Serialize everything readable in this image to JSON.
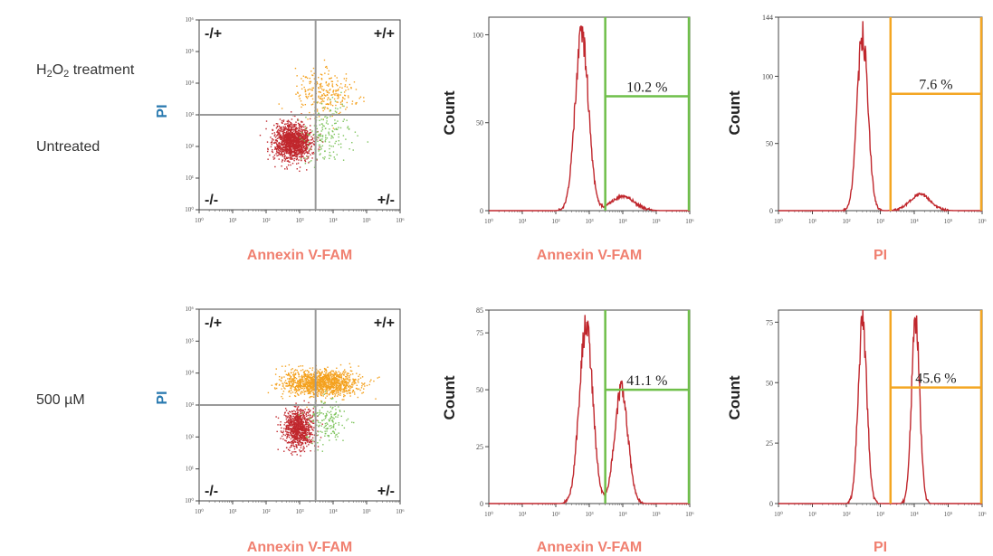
{
  "header": {
    "treatment_base": "H",
    "treatment_sub1": "2",
    "treatment_mid": "O",
    "treatment_sub2": "2",
    "treatment_rest": " treatment"
  },
  "rows": [
    {
      "label": "Untreated"
    },
    {
      "label": "500 µM"
    }
  ],
  "colors": {
    "red": "#c0272d",
    "orange": "#f4a11e",
    "green": "#7dc35b",
    "gate_green": "#6fbf4a",
    "gate_orange": "#f4a622",
    "pi_blue": "#2a7ab0",
    "annexin_salmon": "#f08070",
    "quad_line": "#999999"
  },
  "chart_data": [
    {
      "type": "scatter",
      "panel": "untreated-dotplot",
      "xlabel": "Annexin V-FAM",
      "ylabel": "PI",
      "x_scale": "log",
      "y_scale": "log",
      "xlim": [
        1,
        1000000
      ],
      "ylim": [
        1,
        1000000
      ],
      "x_ticks": [
        "10⁰",
        "10¹",
        "10²",
        "10³",
        "10⁴",
        "10⁵",
        "10⁶"
      ],
      "y_ticks": [
        "10⁰",
        "10¹",
        "10²",
        "10³",
        "10⁴",
        "10⁵",
        "10⁶"
      ],
      "quadrant_gate": {
        "x": 3000,
        "y": 1000
      },
      "quadrants": {
        "top_left": "-/+",
        "top_right": "+/+",
        "bottom_left": "-/-",
        "bottom_right": "+/-"
      },
      "populations": [
        {
          "name": "-/-",
          "color": "red",
          "center": [
            600,
            150
          ],
          "spread": [
            0.28,
            0.28
          ],
          "n": 1400
        },
        {
          "name": "+/+",
          "color": "orange",
          "center": [
            5000,
            5000
          ],
          "spread": [
            0.45,
            0.35
          ],
          "n": 260
        },
        {
          "name": "+/-",
          "color": "green",
          "center": [
            6000,
            250
          ],
          "spread": [
            0.35,
            0.4
          ],
          "n": 180
        }
      ]
    },
    {
      "type": "area",
      "panel": "untreated-annexin-histogram",
      "xlabel": "Annexin V-FAM",
      "ylabel": "Count",
      "x_scale": "log",
      "xlim": [
        1,
        1000000
      ],
      "ylim": [
        0,
        110
      ],
      "y_ticks": [
        0,
        50,
        100
      ],
      "x_ticks": [
        "10⁰",
        "10¹",
        "10²",
        "10³",
        "10⁴",
        "10⁵",
        "10⁶"
      ],
      "gate": {
        "from": 3000,
        "to": 1000000,
        "label": "10.2 %",
        "label_y": 65
      },
      "peaks": [
        {
          "center": 600,
          "width": 0.2,
          "height": 100
        },
        {
          "center": 10000,
          "width": 0.35,
          "height": 8
        }
      ]
    },
    {
      "type": "area",
      "panel": "untreated-pi-histogram",
      "xlabel": "PI",
      "ylabel": "Count",
      "x_scale": "log",
      "xlim": [
        1,
        1000000
      ],
      "ylim": [
        0,
        144
      ],
      "y_ticks": [
        0,
        50,
        100,
        144
      ],
      "x_ticks": [
        "10⁰",
        "10¹",
        "10²",
        "10³",
        "10⁴",
        "10⁵",
        "10⁶"
      ],
      "gate": {
        "from": 2000,
        "to": 1000000,
        "label": "7.6 %",
        "label_y": 87
      },
      "peaks": [
        {
          "center": 300,
          "width": 0.16,
          "height": 130
        },
        {
          "center": 15000,
          "width": 0.3,
          "height": 12
        }
      ]
    },
    {
      "type": "scatter",
      "panel": "500uM-dotplot",
      "xlabel": "Annexin V-FAM",
      "ylabel": "PI",
      "x_scale": "log",
      "y_scale": "log",
      "xlim": [
        1,
        1000000
      ],
      "ylim": [
        1,
        1000000
      ],
      "x_ticks": [
        "10⁰",
        "10¹",
        "10²",
        "10³",
        "10⁴",
        "10⁵",
        "10⁶"
      ],
      "y_ticks": [
        "10⁰",
        "10¹",
        "10²",
        "10³",
        "10⁴",
        "10⁵",
        "10⁶"
      ],
      "quadrant_gate": {
        "x": 3000,
        "y": 1000
      },
      "quadrants": {
        "top_left": "-/+",
        "top_right": "+/+",
        "bottom_left": "-/-",
        "bottom_right": "+/-"
      },
      "populations": [
        {
          "name": "-/-",
          "color": "red",
          "center": [
            900,
            200
          ],
          "spread": [
            0.22,
            0.3
          ],
          "n": 900
        },
        {
          "name": "+/+",
          "color": "orange",
          "center": [
            4000,
            5000
          ],
          "spread": [
            0.55,
            0.2
          ],
          "n": 1300
        },
        {
          "name": "+/-",
          "color": "green",
          "center": [
            6000,
            300
          ],
          "spread": [
            0.3,
            0.4
          ],
          "n": 160
        }
      ]
    },
    {
      "type": "area",
      "panel": "500uM-annexin-histogram",
      "xlabel": "Annexin V-FAM",
      "ylabel": "Count",
      "x_scale": "log",
      "xlim": [
        1,
        1000000
      ],
      "ylim": [
        0,
        85
      ],
      "y_ticks": [
        0,
        25,
        50,
        75,
        85
      ],
      "x_ticks": [
        "10⁰",
        "10¹",
        "10²",
        "10³",
        "10⁴",
        "10⁵",
        "10⁶"
      ],
      "gate": {
        "from": 3000,
        "to": 1000000,
        "label": "41.1 %",
        "label_y": 50
      },
      "peaks": [
        {
          "center": 800,
          "width": 0.2,
          "height": 78
        },
        {
          "center": 9000,
          "width": 0.2,
          "height": 50
        }
      ]
    },
    {
      "type": "area",
      "panel": "500uM-pi-histogram",
      "xlabel": "PI",
      "ylabel": "Count",
      "x_scale": "log",
      "xlim": [
        1,
        1000000
      ],
      "ylim": [
        0,
        80
      ],
      "y_ticks": [
        0,
        25,
        50,
        75
      ],
      "x_ticks": [
        "10⁰",
        "10¹",
        "10²",
        "10³",
        "10⁴",
        "10⁵",
        "10⁶"
      ],
      "gate": {
        "from": 2000,
        "to": 1000000,
        "label": "45.6 %",
        "label_y": 48
      },
      "peaks": [
        {
          "center": 300,
          "width": 0.13,
          "height": 74
        },
        {
          "center": 11000,
          "width": 0.12,
          "height": 76
        }
      ]
    }
  ]
}
